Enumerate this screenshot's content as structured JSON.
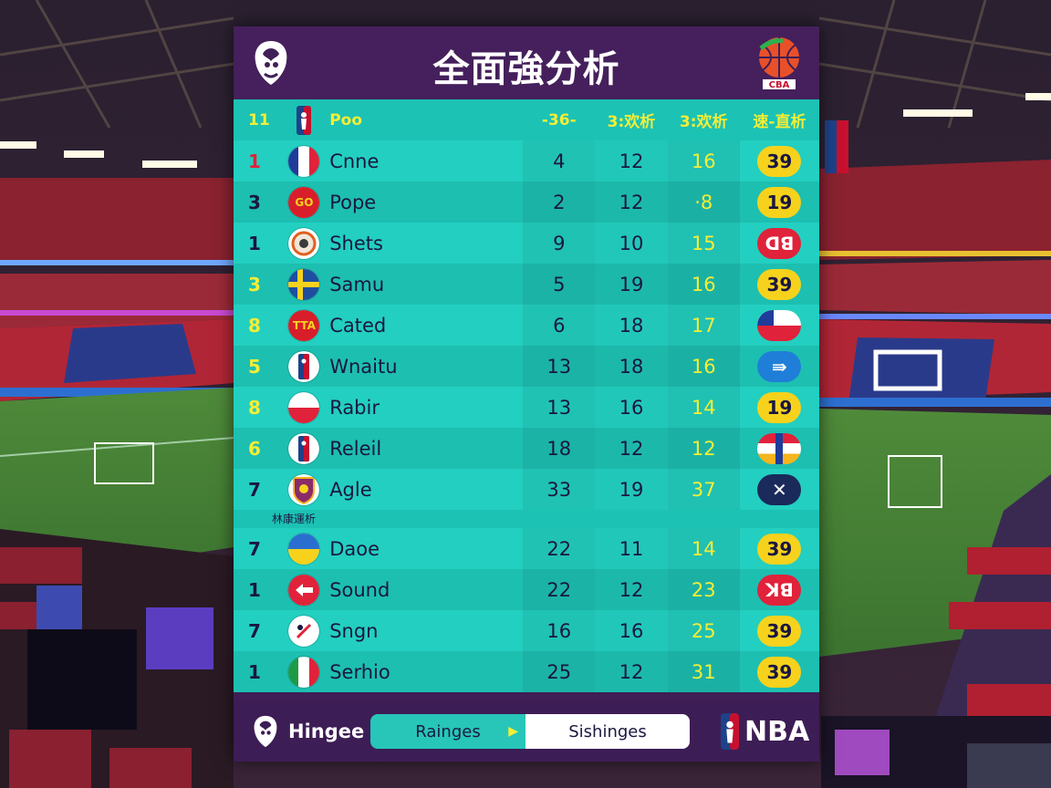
{
  "title": "全面強分析",
  "header": {
    "rank": "11",
    "name": "Poo",
    "col1": "-36-",
    "col2": "3:欢析",
    "col3": "3:欢析",
    "col4": "速-直析"
  },
  "section_label": "林康運析",
  "rows": [
    {
      "rank": "1",
      "rank_color": "red",
      "name": "Cnne",
      "flag": "france",
      "c1": "4",
      "c2": "12",
      "c3": "16",
      "badge": "39",
      "badge_style": "yellow"
    },
    {
      "rank": "3",
      "rank_color": "navy",
      "name": "Pope",
      "flag": "red-text",
      "flag_text": "GO",
      "c1": "2",
      "c2": "12",
      "c3": "·8",
      "badge": "19",
      "badge_style": "yellow"
    },
    {
      "rank": "1",
      "rank_color": "navy",
      "name": "Shets",
      "flag": "crest",
      "c1": "9",
      "c2": "10",
      "c3": "15",
      "badge": "ꓷꓭ",
      "badge_style": "red"
    },
    {
      "rank": "3",
      "rank_color": "yellow",
      "name": "Samu",
      "flag": "sweden",
      "c1": "5",
      "c2": "19",
      "c3": "16",
      "badge": "39",
      "badge_style": "yellow"
    },
    {
      "rank": "8",
      "rank_color": "yellow",
      "name": "Cated",
      "flag": "red-text",
      "flag_text": "TTA",
      "c1": "6",
      "c2": "18",
      "c3": "17",
      "badge": "",
      "badge_style": "chile"
    },
    {
      "rank": "5",
      "rank_color": "yellow",
      "name": "Wnaitu",
      "flag": "nba",
      "c1": "13",
      "c2": "18",
      "c3": "16",
      "badge": "⇛",
      "badge_style": "blue"
    },
    {
      "rank": "8",
      "rank_color": "yellow",
      "name": "Rabir",
      "flag": "poland",
      "c1": "13",
      "c2": "16",
      "c3": "14",
      "badge": "19",
      "badge_style": "yellow"
    },
    {
      "rank": "6",
      "rank_color": "yellow",
      "name": "Releil",
      "flag": "nba",
      "c1": "18",
      "c2": "12",
      "c3": "12",
      "badge": "",
      "badge_style": "tricolor"
    },
    {
      "rank": "7",
      "rank_color": "navy",
      "name": "Agle",
      "flag": "shield",
      "c1": "33",
      "c2": "19",
      "c3": "37",
      "badge": "✕",
      "badge_style": "navy"
    }
  ],
  "rows2": [
    {
      "rank": "7",
      "rank_color": "navy",
      "name": "Daoe",
      "flag": "ukraine",
      "c1": "22",
      "c2": "11",
      "c3": "14",
      "badge": "39",
      "badge_style": "yellow"
    },
    {
      "rank": "1",
      "rank_color": "navy",
      "name": "Sound",
      "flag": "arrow-red",
      "c1": "22",
      "c2": "12",
      "c3": "23",
      "badge": "ꓘꓭ",
      "badge_style": "red"
    },
    {
      "rank": "7",
      "rank_color": "navy",
      "name": "Sngn",
      "flag": "white-mark",
      "c1": "16",
      "c2": "16",
      "c3": "25",
      "badge": "39",
      "badge_style": "yellow"
    },
    {
      "rank": "1",
      "rank_color": "navy",
      "name": "Serhio",
      "flag": "italy",
      "c1": "25",
      "c2": "12",
      "c3": "31",
      "badge": "39",
      "badge_style": "yellow"
    }
  ],
  "footer": {
    "left_label": "Hingee",
    "tab_a": "Rainges",
    "tab_b": "Sishinges",
    "right_label": "NBA"
  },
  "icons": {
    "left_logo": "lion-crest-icon",
    "right_logo": "cba-basketball-icon",
    "footer_left": "lion-crest-icon",
    "footer_right": "nba-logo-icon"
  },
  "colors": {
    "panel_purple": "#45205c",
    "teal": "#23cfc0",
    "yellow": "#f4ee36",
    "badge_yellow": "#f6d21d",
    "badge_red": "#e0223a",
    "navy": "#1a1740"
  }
}
